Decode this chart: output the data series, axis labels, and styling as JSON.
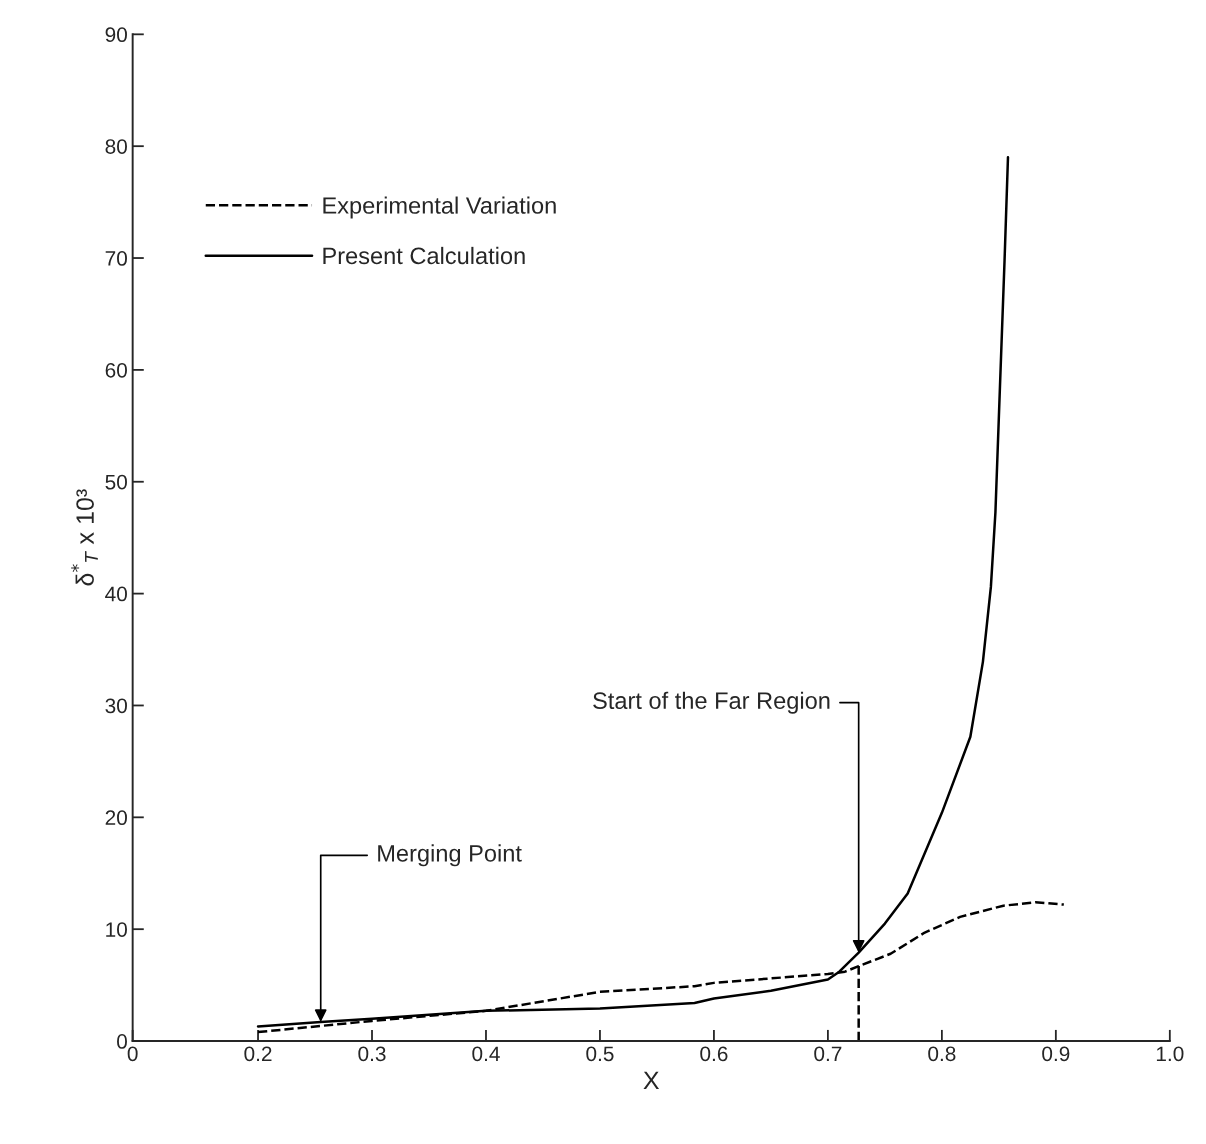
{
  "chart_data": {
    "type": "line",
    "xlabel": "X",
    "ylabel": "δ$^{*}$$_{T}$ x 10³",
    "xlim": [
      0.09,
      1.0
    ],
    "xticks": [
      {
        "value": 0.09,
        "label": "0"
      },
      0.2,
      0.3,
      0.4,
      0.5,
      0.6,
      0.7,
      0.8,
      0.9,
      {
        "value": 1.0,
        "label": "1.0"
      }
    ],
    "ylim": [
      0,
      90
    ],
    "yticks": [
      0,
      10,
      20,
      30,
      40,
      50,
      60,
      70,
      80,
      90
    ],
    "grid": false,
    "legend": "top left",
    "series": [
      {
        "name": "Experimental Variation",
        "color": "#000000",
        "line_style": "dashed",
        "x": [
          0.2,
          0.3,
          0.4,
          0.5,
          0.583,
          0.6,
          0.7,
          0.715,
          0.727,
          0.755,
          0.785,
          0.816,
          0.854,
          0.882,
          0.907
        ],
        "values": [
          0.8,
          1.8,
          2.7,
          4.4,
          4.9,
          5.2,
          6.0,
          6.2,
          6.7,
          7.8,
          9.7,
          11.1,
          12.1,
          12.4,
          12.2
        ]
      },
      {
        "name": "Present Calculation",
        "color": "#000000",
        "line_style": "solid",
        "x": [
          0.2,
          0.255,
          0.3,
          0.4,
          0.5,
          0.583,
          0.6,
          0.65,
          0.7,
          0.71,
          0.727,
          0.75,
          0.77,
          0.8,
          0.825,
          0.836,
          0.843,
          0.847,
          0.851,
          0.855,
          0.858
        ],
        "values": [
          1.3,
          1.7,
          2.0,
          2.7,
          2.9,
          3.4,
          3.8,
          4.5,
          5.5,
          6.2,
          7.9,
          10.5,
          13.2,
          20.4,
          27.2,
          33.9,
          40.6,
          47.3,
          58.6,
          69.8,
          79.0
        ]
      },
      {
        "color": "#000000",
        "line_style": "dashed",
        "x": [
          0.727,
          0.727
        ],
        "values": [
          0,
          6.7
        ]
      }
    ],
    "annotations": [
      {
        "text": "Merging Point",
        "x": 0.255,
        "y": 1.7
      },
      {
        "text": "Start of the Far Region",
        "x": 0.727,
        "y": 7.9
      }
    ]
  }
}
